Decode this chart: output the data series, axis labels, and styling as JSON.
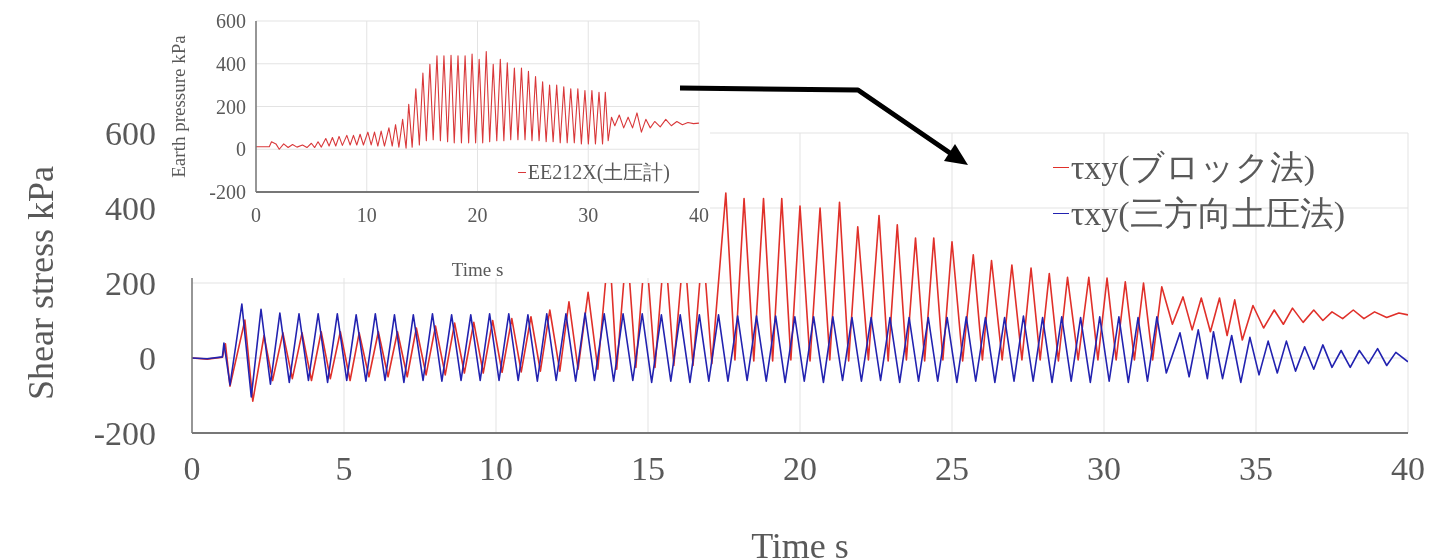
{
  "chart_data": [
    {
      "type": "line",
      "xlabel": "Time s",
      "ylabel": "Shear stress kPa",
      "xlim": [
        0,
        40
      ],
      "xticks": [
        0,
        5,
        10,
        15,
        20,
        25,
        30,
        35,
        40
      ],
      "ylim": [
        -200,
        600
      ],
      "yticks": [
        -200,
        0,
        200,
        400,
        600
      ],
      "grid": true,
      "legend": "top right",
      "series": [
        {
          "name": "τxy(ブロック法)",
          "color": "#e0302a",
          "x": [
            0,
            0.5,
            1.0,
            1.1,
            1.25,
            1.74,
            2.0,
            2.37,
            2.65,
            2.99,
            3.3,
            3.62,
            3.93,
            4.25,
            4.55,
            4.88,
            5.2,
            5.5,
            5.82,
            6.13,
            6.45,
            6.76,
            7.08,
            7.38,
            7.7,
            8.01,
            8.33,
            8.64,
            8.96,
            9.27,
            9.58,
            9.89,
            10.2,
            10.52,
            10.83,
            11.15,
            11.46,
            11.77,
            12.1,
            12.4,
            12.7,
            13.03,
            13.35,
            13.6,
            13.7,
            13.8,
            13.97,
            14.2,
            14.3,
            14.4,
            14.6,
            14.82,
            14.92,
            15.02,
            15.23,
            15.45,
            15.55,
            15.65,
            15.85,
            16.08,
            16.18,
            16.28,
            16.48,
            16.7,
            16.8,
            16.9,
            17.1,
            17.56,
            17.86,
            18.16,
            18.48,
            18.8,
            19.1,
            19.4,
            19.7,
            20.0,
            20.33,
            20.66,
            20.98,
            21.3,
            21.6,
            21.9,
            22.25,
            22.6,
            22.9,
            23.2,
            23.5,
            23.8,
            24.1,
            24.4,
            24.7,
            25.0,
            25.35,
            25.7,
            26.0,
            26.3,
            26.65,
            26.97,
            27.3,
            27.6,
            27.9,
            28.2,
            28.5,
            28.8,
            29.15,
            29.5,
            29.8,
            30.1,
            30.4,
            30.7,
            31.0,
            31.3,
            31.6,
            31.9,
            32.25,
            32.6,
            32.9,
            33.2,
            33.5,
            33.8,
            34.05,
            34.3,
            34.55,
            34.9,
            35.25,
            35.6,
            35.9,
            36.2,
            36.55,
            36.9,
            37.2,
            37.5,
            37.85,
            38.2,
            38.55,
            38.9,
            39.3,
            39.7,
            40
          ],
          "values": [
            0,
            -3,
            2,
            38,
            -75,
            101,
            -115,
            60,
            -60,
            67,
            -55,
            67,
            -60,
            70,
            -55,
            70,
            -60,
            67,
            -50,
            70,
            -50,
            70,
            -50,
            80,
            -45,
            85,
            -45,
            93,
            -40,
            95,
            -40,
            100,
            -38,
            105,
            -37,
            110,
            -35,
            128,
            -35,
            150,
            -30,
            175,
            -30,
            200,
            null,
            200,
            -30,
            200,
            null,
            200,
            -25,
            200,
            null,
            200,
            -25,
            200,
            null,
            200,
            -20,
            200,
            null,
            200,
            -20,
            200,
            null,
            200,
            -15,
            440,
            -5,
            425,
            -8,
            425,
            -8,
            425,
            -5,
            405,
            -8,
            400,
            -5,
            415,
            -8,
            350,
            -5,
            380,
            -8,
            355,
            -5,
            320,
            -8,
            320,
            -5,
            310,
            -8,
            275,
            -5,
            260,
            -5,
            248,
            -5,
            240,
            -5,
            225,
            -8,
            215,
            -5,
            215,
            -5,
            213,
            -5,
            203,
            -5,
            200,
            -5,
            190,
            90,
            163,
            75,
            160,
            70,
            160,
            60,
            155,
            48,
            140,
            80,
            128,
            90,
            133,
            95,
            128,
            100,
            123,
            105,
            128,
            105,
            123,
            108,
            120,
            115
          ]
        },
        {
          "name": "τxy(三方向土圧法)",
          "color": "#2222b0",
          "x": [
            0,
            0.5,
            1.0,
            1.05,
            1.25,
            1.64,
            1.95,
            2.27,
            2.58,
            2.89,
            3.2,
            3.52,
            3.83,
            4.15,
            4.46,
            4.78,
            5.09,
            5.4,
            5.72,
            6.03,
            6.35,
            6.66,
            6.97,
            7.28,
            7.6,
            7.91,
            8.22,
            8.54,
            8.85,
            9.17,
            9.48,
            9.79,
            10.1,
            10.42,
            10.73,
            11.05,
            11.36,
            11.67,
            11.98,
            12.3,
            12.62,
            12.93,
            13.24,
            13.56,
            13.87,
            14.18,
            14.5,
            14.81,
            15.12,
            15.44,
            15.75,
            16.06,
            16.38,
            16.69,
            17.0,
            17.32,
            17.63,
            17.95,
            18.26,
            18.57,
            18.89,
            19.2,
            19.51,
            19.83,
            20.14,
            20.45,
            20.77,
            21.08,
            21.4,
            21.71,
            22.02,
            22.34,
            22.65,
            22.96,
            23.28,
            23.59,
            23.9,
            24.22,
            24.53,
            24.84,
            25.16,
            25.47,
            25.78,
            26.1,
            26.41,
            26.73,
            27.04,
            27.35,
            27.67,
            27.98,
            28.29,
            28.61,
            28.92,
            29.23,
            29.55,
            29.86,
            30.17,
            30.49,
            30.8,
            31.12,
            31.43,
            31.74,
            32.05,
            32.5,
            32.8,
            33.1,
            33.4,
            33.6,
            33.9,
            34.2,
            34.5,
            34.8,
            35.1,
            35.4,
            35.7,
            36.0,
            36.3,
            36.6,
            36.9,
            37.2,
            37.5,
            37.8,
            38.1,
            38.4,
            38.7,
            39.0,
            39.3,
            39.6,
            40
          ],
          "values": [
            0,
            -2,
            3,
            40,
            -72,
            144,
            -104,
            130,
            -70,
            120,
            -65,
            118,
            -60,
            118,
            -65,
            118,
            -60,
            115,
            -62,
            118,
            -60,
            115,
            -65,
            115,
            -60,
            118,
            -62,
            115,
            -60,
            115,
            -60,
            118,
            -60,
            118,
            -60,
            115,
            -62,
            118,
            -60,
            118,
            -62,
            120,
            -60,
            118,
            -62,
            118,
            -60,
            118,
            -65,
            115,
            -62,
            115,
            -65,
            115,
            -62,
            115,
            -62,
            112,
            -60,
            112,
            -62,
            112,
            -65,
            110,
            -62,
            110,
            -65,
            110,
            -60,
            108,
            -62,
            108,
            -60,
            108,
            -65,
            108,
            -62,
            108,
            -62,
            108,
            -65,
            110,
            -62,
            108,
            -65,
            108,
            -62,
            112,
            -62,
            108,
            -65,
            110,
            -62,
            108,
            -65,
            110,
            -62,
            110,
            -65,
            108,
            -62,
            110,
            -40,
            67,
            -50,
            75,
            -55,
            70,
            -55,
            60,
            -65,
            55,
            -45,
            45,
            -40,
            45,
            -35,
            30,
            -30,
            35,
            -25,
            20,
            -25,
            20,
            -15,
            25,
            -20,
            15,
            -10
          ]
        }
      ]
    },
    {
      "type": "line",
      "xlabel": "Time s",
      "ylabel": "Earth pressure kPa",
      "xlim": [
        0,
        40
      ],
      "xticks": [
        0,
        10,
        20,
        30,
        40
      ],
      "ylim": [
        -200,
        600
      ],
      "yticks": [
        -200,
        0,
        200,
        400,
        600
      ],
      "grid": true,
      "legend": "bottom right",
      "series": [
        {
          "name": "EE212X(土圧計)",
          "color": "#d9383a",
          "x": [
            0,
            1.2,
            1.4,
            1.8,
            2.1,
            2.5,
            2.9,
            3.3,
            3.7,
            4.2,
            4.6,
            5.0,
            5.3,
            5.6,
            5.9,
            6.3,
            6.6,
            6.9,
            7.2,
            7.5,
            7.8,
            8.2,
            8.5,
            8.8,
            9.1,
            9.4,
            9.7,
            10.1,
            10.4,
            10.7,
            11.0,
            11.3,
            11.6,
            12.0,
            12.3,
            12.6,
            12.9,
            13.24,
            13.55,
            13.79,
            14.1,
            14.43,
            14.75,
            15.07,
            15.38,
            15.7,
            16.0,
            16.34,
            16.65,
            16.97,
            17.3,
            17.61,
            17.9,
            18.24,
            18.55,
            18.88,
            19.2,
            19.51,
            19.83,
            20.15,
            20.47,
            20.79,
            21.1,
            21.42,
            21.74,
            22.06,
            22.38,
            22.69,
            23.0,
            23.33,
            23.65,
            23.97,
            24.29,
            24.6,
            24.92,
            25.24,
            25.56,
            25.88,
            26.2,
            26.51,
            26.83,
            27.15,
            27.47,
            27.79,
            28.1,
            28.42,
            28.74,
            29.06,
            29.38,
            29.7,
            30.01,
            30.33,
            30.65,
            30.97,
            31.29,
            31.54,
            31.8,
            32.1,
            32.4,
            32.8,
            33.2,
            33.6,
            34.0,
            34.4,
            34.8,
            35.2,
            35.6,
            36.0,
            36.5,
            37.0,
            37.5,
            38.0,
            38.5,
            39.0,
            39.5,
            40
          ],
          "values": [
            12,
            12,
            35,
            25,
            0,
            25,
            8,
            22,
            10,
            20,
            8,
            28,
            8,
            35,
            10,
            50,
            15,
            55,
            15,
            60,
            18,
            65,
            20,
            65,
            20,
            70,
            20,
            80,
            20,
            80,
            15,
            85,
            15,
            100,
            15,
            115,
            10,
            140,
            5,
            210,
            10,
            283,
            20,
            356,
            40,
            397,
            45,
            437,
            40,
            437,
            35,
            440,
            30,
            437,
            30,
            437,
            30,
            445,
            30,
            421,
            30,
            457,
            35,
            397,
            40,
            421,
            40,
            405,
            45,
            380,
            45,
            380,
            45,
            365,
            40,
            340,
            40,
            316,
            35,
            300,
            35,
            300,
            30,
            292,
            30,
            283,
            30,
            283,
            25,
            275,
            25,
            275,
            25,
            267,
            25,
            267,
            40,
            150,
            110,
            160,
            100,
            150,
            100,
            170,
            80,
            140,
            100,
            130,
            105,
            140,
            110,
            130,
            115,
            125,
            120,
            122
          ]
        }
      ]
    }
  ]
}
